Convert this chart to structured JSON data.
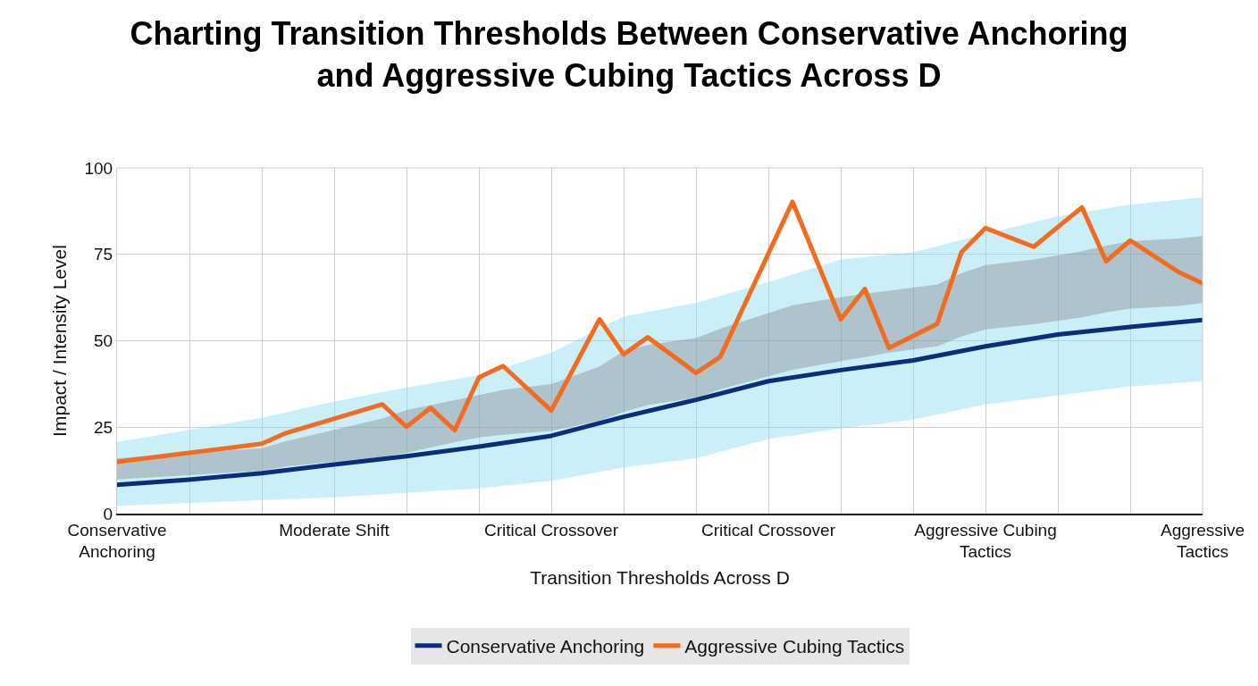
{
  "chart_data": {
    "type": "line",
    "title": "Charting Transition Thresholds Between Conservative Anchoring and Aggressive Cubing Tactics Across D",
    "xlabel": "Transition Thresholds Across D",
    "ylabel": "Impact / Intensity Level",
    "categories": [
      "Conservative\nAnchoring",
      null,
      null,
      null,
      null,
      null,
      null,
      null,
      null,
      "Moderate Shift",
      null,
      null,
      null,
      null,
      null,
      null,
      null,
      null,
      "Critical Crossover",
      null,
      null,
      null,
      null,
      null,
      null,
      null,
      null,
      "Critical Crossover",
      null,
      null,
      null,
      null,
      null,
      null,
      null,
      null,
      "Aggressive Cubing\nTactics",
      null,
      null,
      null,
      null,
      null,
      null,
      null,
      null,
      "Aggressive\nTactics"
    ],
    "ylim": [
      0,
      100
    ],
    "yticks": [
      0,
      25,
      50,
      75,
      100
    ],
    "grid": true,
    "legend": "bottom",
    "marker": "none",
    "line_style": "solid",
    "series": [
      {
        "name": "Conservative Anchoring",
        "color": "#0b2d7a",
        "values": [
          8.3,
          null,
          null,
          9.8,
          null,
          null,
          11.7,
          null,
          null,
          14.2,
          null,
          null,
          16.6,
          null,
          null,
          19.4,
          null,
          null,
          22.5,
          null,
          null,
          28,
          null,
          null,
          32.9,
          null,
          null,
          38.3,
          null,
          null,
          41.5,
          null,
          null,
          44.3,
          null,
          null,
          48.4,
          null,
          null,
          51.8,
          null,
          null,
          54,
          null,
          null,
          56
        ],
        "lower": [
          2.2,
          null,
          null,
          3.1,
          null,
          null,
          3.9,
          null,
          null,
          4.7,
          null,
          null,
          6,
          null,
          null,
          7.3,
          null,
          null,
          9.5,
          null,
          null,
          13.4,
          null,
          null,
          16,
          null,
          null,
          21.6,
          null,
          null,
          24.6,
          null,
          null,
          27.2,
          null,
          null,
          31.6,
          null,
          null,
          34.2,
          null,
          null,
          36.8,
          null,
          null,
          38.3
        ],
        "upper": [
          20.7,
          null,
          null,
          24.2,
          null,
          null,
          27.7,
          null,
          null,
          32.4,
          null,
          null,
          36.5,
          null,
          null,
          40,
          null,
          null,
          46.6,
          null,
          null,
          57,
          null,
          null,
          61,
          null,
          null,
          67,
          null,
          null,
          73.5,
          null,
          null,
          75.6,
          null,
          null,
          81,
          null,
          null,
          86,
          null,
          null,
          89.4,
          null,
          null,
          91.5
        ]
      },
      {
        "name": "Aggressive Cubing Tactics",
        "color": "#f26b1f",
        "values": [
          15.0,
          null,
          null,
          null,
          null,
          null,
          20.2,
          23.3,
          null,
          null,
          null,
          31.6,
          25.1,
          30.6,
          24.1,
          39.4,
          42.7,
          null,
          29.8,
          null,
          56.2,
          46.1,
          51.0,
          null,
          40.7,
          45.3,
          null,
          null,
          90.2,
          null,
          56.2,
          65.0,
          47.9,
          null,
          54.9,
          75.6,
          82.6,
          null,
          77.2,
          null,
          88.6,
          73.0,
          79.0,
          null,
          69.9,
          66.6
        ],
        "lower": [
          9.9,
          null,
          null,
          null,
          null,
          null,
          12.4,
          13.6,
          null,
          null,
          null,
          16.4,
          17.6,
          19.1,
          20.7,
          22.0,
          22.8,
          null,
          23.9,
          null,
          26.9,
          29.4,
          31.4,
          null,
          33.5,
          35.9,
          null,
          null,
          41.6,
          null,
          44.1,
          45.3,
          46.6,
          null,
          48.4,
          51.2,
          53.3,
          null,
          54.8,
          null,
          56.8,
          58.2,
          59.3,
          null,
          60.1,
          60.9
        ],
        "upper": [
          16,
          null,
          null,
          null,
          null,
          null,
          18.9,
          20.9,
          null,
          null,
          null,
          27.5,
          30.0,
          31.4,
          32.8,
          34.3,
          35.8,
          null,
          37.5,
          null,
          42.6,
          47,
          48.8,
          null,
          50.8,
          53.5,
          null,
          null,
          60.3,
          null,
          62.6,
          63.6,
          64.5,
          null,
          66.3,
          69.5,
          71.9,
          null,
          73.5,
          null,
          75.9,
          77.5,
          78.8,
          null,
          79.6,
          80.3
        ]
      }
    ]
  }
}
